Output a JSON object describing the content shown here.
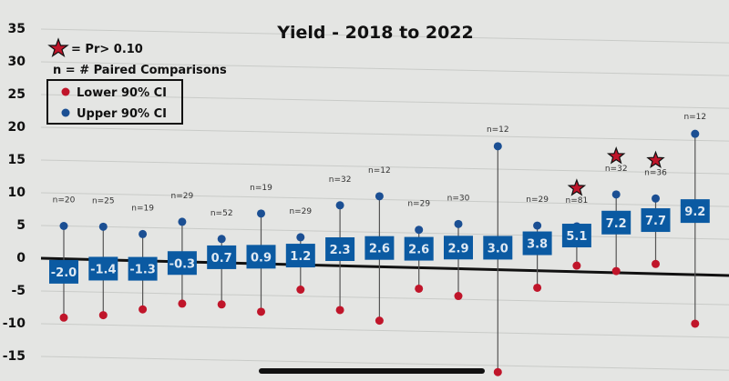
{
  "chart_data": {
    "type": "scatter",
    "title": "Yield - 2018 to 2022",
    "xlabel": "",
    "ylabel": "",
    "ylim": [
      -15,
      35
    ],
    "yticks": [
      35,
      30,
      25,
      20,
      15,
      10,
      5,
      0,
      -5,
      -10,
      -15
    ],
    "grid": true,
    "legend": {
      "placement": "top-left",
      "star_note": "= Pr> 0.10",
      "n_note": "n = # Paired Comparisons",
      "lower_label": "Lower 90% CI",
      "upper_label": "Upper 90% CI"
    },
    "colors": {
      "estimate": "#0b5aa2",
      "upper": "#1b4f93",
      "lower": "#c0152a",
      "star": "#c0152a"
    },
    "points": [
      {
        "estimate": -2.0,
        "label": "-2.0",
        "upper": 5.0,
        "lower": -9.0,
        "n": "n=20",
        "star": false
      },
      {
        "estimate": -1.4,
        "label": "-1.4",
        "upper": 5.0,
        "lower": -8.5,
        "n": "n=25",
        "star": false
      },
      {
        "estimate": -1.3,
        "label": "-1.3",
        "upper": 4.0,
        "lower": -7.5,
        "n": "n=19",
        "star": false
      },
      {
        "estimate": -0.3,
        "label": "-0.3",
        "upper": 6.0,
        "lower": -6.5,
        "n": "n=29",
        "star": false
      },
      {
        "estimate": 0.7,
        "label": "0.7",
        "upper": 3.5,
        "lower": -6.5,
        "n": "n=52",
        "star": false
      },
      {
        "estimate": 0.9,
        "label": "0.9",
        "upper": 7.5,
        "lower": -7.5,
        "n": "n=19",
        "star": false
      },
      {
        "estimate": 1.2,
        "label": "1.2",
        "upper": 4.0,
        "lower": -4.0,
        "n": "n=29",
        "star": false
      },
      {
        "estimate": 2.3,
        "label": "2.3",
        "upper": 9.0,
        "lower": -7.0,
        "n": "n=32",
        "star": false
      },
      {
        "estimate": 2.6,
        "label": "2.6",
        "upper": 10.5,
        "lower": -8.5,
        "n": "n=12",
        "star": false
      },
      {
        "estimate": 2.6,
        "label": "2.6",
        "upper": 5.5,
        "lower": -3.5,
        "n": "n=29",
        "star": false
      },
      {
        "estimate": 2.9,
        "label": "2.9",
        "upper": 6.5,
        "lower": -4.5,
        "n": "n=30",
        "star": false
      },
      {
        "estimate": 3.0,
        "label": "3.0",
        "upper": 18.5,
        "lower": -16.0,
        "n": "n=12",
        "star": false
      },
      {
        "estimate": 3.8,
        "label": "3.8",
        "upper": 6.5,
        "lower": -3.0,
        "n": "n=29",
        "star": false
      },
      {
        "estimate": 5.1,
        "label": "5.1",
        "upper": 6.5,
        "lower": 0.5,
        "n": "n=81",
        "star": true
      },
      {
        "estimate": 7.2,
        "label": "7.2",
        "upper": 11.5,
        "lower": -0.2,
        "n": "n=32",
        "star": true
      },
      {
        "estimate": 7.7,
        "label": "7.7",
        "upper": 11.0,
        "lower": 1.0,
        "n": "n=36",
        "star": true
      },
      {
        "estimate": 9.2,
        "label": "9.2",
        "upper": 21.0,
        "lower": -8.0,
        "n": "n=12",
        "star": false
      }
    ]
  }
}
